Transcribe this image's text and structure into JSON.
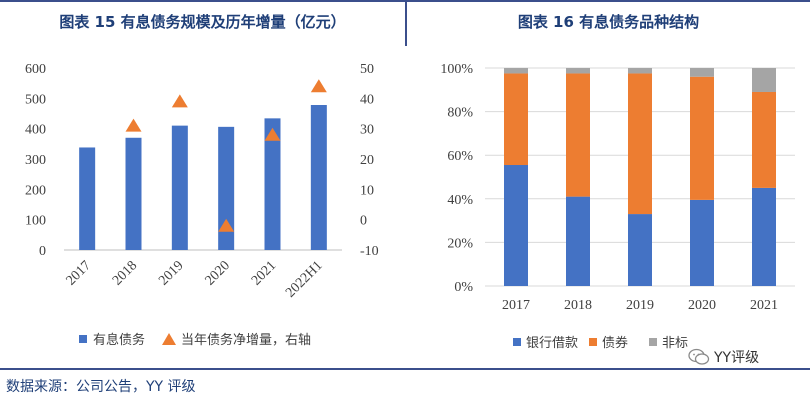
{
  "chart_data": [
    {
      "type": "bar",
      "title": "图表 15 有息债务规模及历年增量（亿元）",
      "categories": [
        "2017",
        "2018",
        "2019",
        "2020",
        "2021",
        "2022H1"
      ],
      "series": [
        {
          "name": "有息债务",
          "axis": "left",
          "type": "bar",
          "color": "#4472c4",
          "values": [
            338,
            370,
            410,
            406,
            434,
            478
          ]
        },
        {
          "name": "当年债务净增量，右轴",
          "axis": "right",
          "type": "marker",
          "color": "#ed7d31",
          "values": [
            null,
            31,
            39,
            -2,
            28,
            44
          ]
        }
      ],
      "ylim": [
        0,
        600
      ],
      "yticks": [
        "600",
        "500",
        "400",
        "300",
        "200",
        "100",
        "0"
      ],
      "y2lim": [
        -10,
        50
      ],
      "y2ticks": [
        "50",
        "40",
        "30",
        "20",
        "10",
        "0",
        "-10"
      ],
      "legend": "bottom"
    },
    {
      "type": "bar",
      "stacked": true,
      "title": "图表 16 有息债务品种结构",
      "categories": [
        "2017",
        "2018",
        "2019",
        "2020",
        "2021"
      ],
      "series": [
        {
          "name": "银行借款",
          "color": "#4472c4",
          "values": [
            55.5,
            41,
            33,
            39.5,
            45
          ]
        },
        {
          "name": "债券",
          "color": "#ed7d31",
          "values": [
            42,
            56.5,
            64.5,
            56.5,
            44
          ]
        },
        {
          "name": "非标",
          "color": "#a5a5a5",
          "values": [
            2.5,
            2.5,
            2.5,
            4,
            11
          ]
        }
      ],
      "ylim": [
        0,
        100
      ],
      "yticks": [
        "100%",
        "80%",
        "60%",
        "40%",
        "20%",
        "0%"
      ],
      "legend": "bottom"
    }
  ],
  "footer": {
    "source": "数据来源：公司公告，YY 评级",
    "watermark": "YY评级"
  },
  "colors": {
    "accent": "#1f3f78",
    "bar_blue": "#4472c4",
    "orange": "#ed7d31",
    "gray": "#a5a5a5"
  }
}
